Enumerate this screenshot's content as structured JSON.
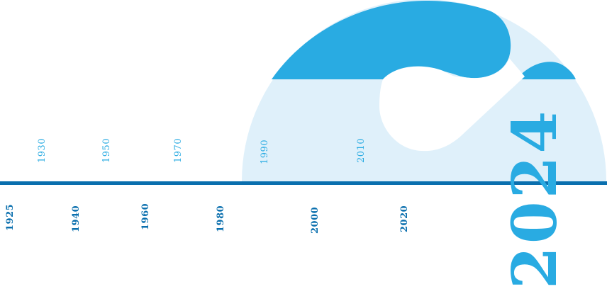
{
  "colors": {
    "accent": "#29abe2",
    "accent_dark": "#0a6fae",
    "light_fill": "#dff0fa",
    "background": "#ffffff"
  },
  "timeline": {
    "years_above": [
      "1930",
      "1950",
      "1970",
      "1990",
      "2010"
    ],
    "years_below": [
      "1925",
      "1940",
      "1960",
      "1980",
      "2000",
      "2020"
    ],
    "highlight_year": "2024"
  }
}
